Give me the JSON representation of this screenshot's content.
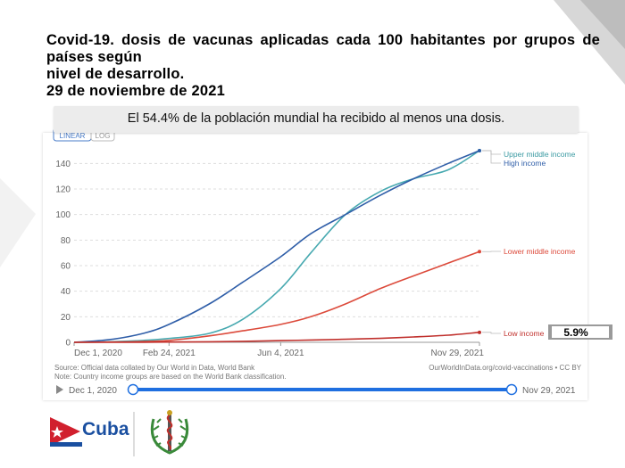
{
  "title_lines": [
    "Covid-19. dosis de vacunas aplicadas cada 100 habitantes por grupos de países según",
    "nivel de desarrollo.",
    "29 de noviembre de 2021"
  ],
  "banner": "El 54.4% de la población mundial ha recibido al menos una dosis.",
  "toolbar": {
    "linear_label": "LINEAR",
    "log_label": "LOG"
  },
  "timeline": {
    "start": "Dec 1, 2020",
    "end": "Nov 29, 2021"
  },
  "footer": {
    "country_label": "Cuba"
  },
  "colors": {
    "upper_middle": "#47a9b0",
    "high": "#2f5ea8",
    "lower_middle": "#dc4a3b",
    "low": "#c0302c",
    "slider": "#1f6fe0"
  },
  "chart_data": {
    "type": "line",
    "title": "",
    "xlabel": "",
    "ylabel": "",
    "x_ticks": [
      "Dec 1, 2020",
      "Feb 24, 2021",
      "Jun 4, 2021",
      "Nov 29, 2021"
    ],
    "y_ticks": [
      0,
      20,
      40,
      60,
      80,
      100,
      120,
      140
    ],
    "xlim": [
      "2020-12-01",
      "2021-11-29"
    ],
    "ylim": [
      0,
      150
    ],
    "grid": true,
    "legend": "right-inline",
    "source": "Source: Official data collated by Our World in Data, World Bank",
    "note": "Note: Country income groups are based on the World Bank classification.",
    "credit": "OurWorldInData.org/covid-vaccinations • CC BY",
    "x": [
      "2020-12-01",
      "2021-01-01",
      "2021-02-01",
      "2021-02-24",
      "2021-04-01",
      "2021-05-01",
      "2021-06-04",
      "2021-07-01",
      "2021-08-01",
      "2021-09-01",
      "2021-10-01",
      "2021-11-01",
      "2021-11-29"
    ],
    "series": [
      {
        "name": "Upper middle income",
        "color_key": "upper_middle",
        "values": [
          0,
          0.4,
          1.5,
          3,
          7,
          18,
          42,
          70,
          100,
          118,
          128,
          135,
          150
        ]
      },
      {
        "name": "High income",
        "color_key": "high",
        "values": [
          0,
          2,
          7,
          14,
          30,
          47,
          67,
          85,
          100,
          115,
          128,
          140,
          150
        ]
      },
      {
        "name": "Lower middle income",
        "color_key": "lower_middle",
        "values": [
          0,
          0.2,
          0.6,
          1.5,
          5,
          9,
          14,
          20,
          30,
          42,
          52,
          62,
          71
        ]
      },
      {
        "name": "Low income",
        "color_key": "low",
        "values": [
          0,
          0,
          0.1,
          0.2,
          0.4,
          0.8,
          1.3,
          1.8,
          2.4,
          3.1,
          4.2,
          5.6,
          7.8
        ]
      }
    ],
    "annotation": "5.9%"
  }
}
